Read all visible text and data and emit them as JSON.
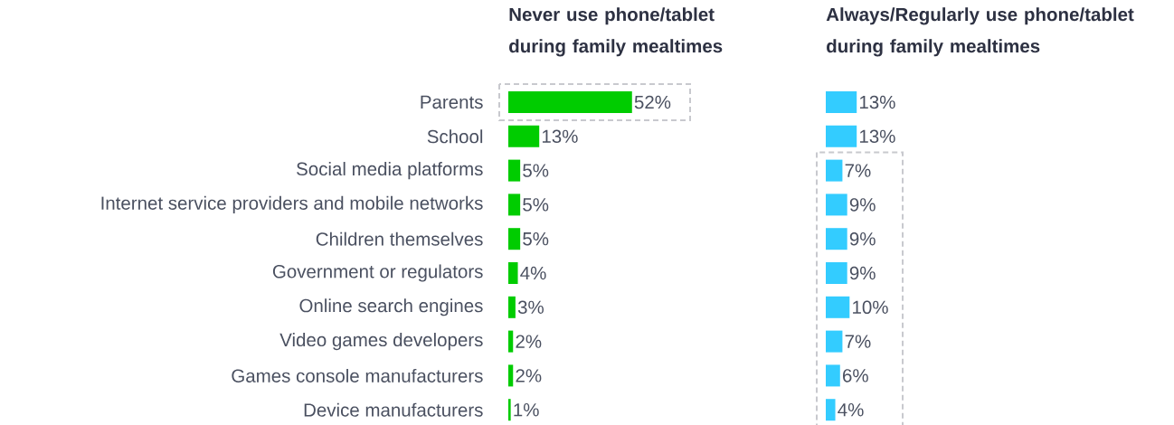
{
  "chart_data": [
    {
      "type": "bar",
      "orientation": "horizontal",
      "title": "Never use phone/tablet during family mealtimes",
      "categories": [
        "Parents",
        "School",
        "Social media platforms",
        "Internet service providers and mobile networks",
        "Children themselves",
        "Government or regulators",
        "Online search engines",
        "Video games developers",
        "Games console manufacturers",
        "Device manufacturers"
      ],
      "values": [
        52,
        13,
        5,
        5,
        5,
        4,
        3,
        2,
        2,
        1
      ],
      "value_labels": [
        "52%",
        "13%",
        "5%",
        "5%",
        "5%",
        "4%",
        "3%",
        "2%",
        "2%",
        "1%"
      ],
      "color": "#00cc00"
    },
    {
      "type": "bar",
      "orientation": "horizontal",
      "title": "Always/Regularly use phone/tablet during family mealtimes",
      "values": [
        13,
        13,
        7,
        9,
        9,
        9,
        10,
        7,
        6,
        4
      ],
      "value_labels": [
        "13%",
        "13%",
        "7%",
        "9%",
        "9%",
        "9%",
        "10%",
        "7%",
        "6%",
        "4%"
      ],
      "color": "#33ccff",
      "tick_labels": false
    }
  ]
}
